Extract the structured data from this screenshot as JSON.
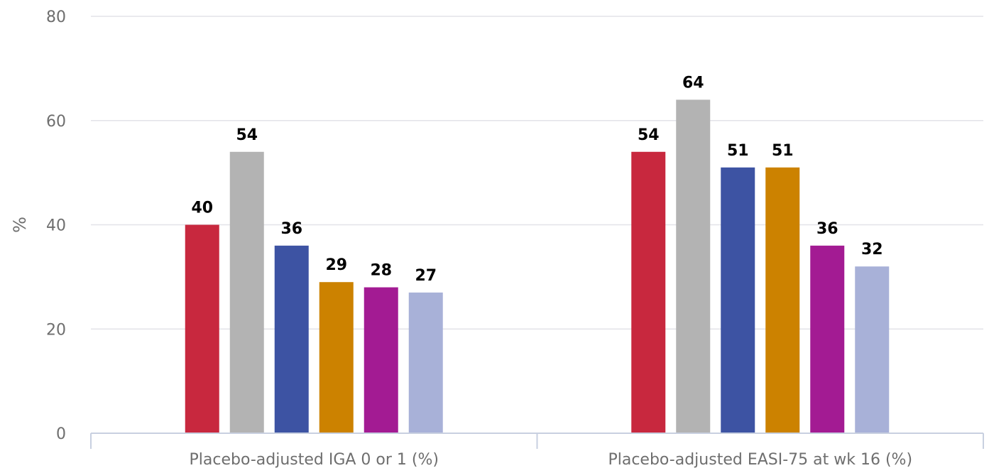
{
  "chart_data": {
    "type": "bar",
    "ylabel": "%",
    "ylim": [
      0,
      80
    ],
    "yticks": [
      0,
      20,
      40,
      60,
      80
    ],
    "grid": true,
    "categories": [
      "Placebo-adjusted IGA 0 or 1 (%)",
      "Placebo-adjusted EASI-75 at wk 16 (%)"
    ],
    "series": [
      {
        "color": "#c8283e",
        "values": [
          40,
          54
        ]
      },
      {
        "color": "#b3b3b3",
        "values": [
          54,
          64
        ]
      },
      {
        "color": "#3d53a3",
        "values": [
          36,
          51
        ]
      },
      {
        "color": "#cc8200",
        "values": [
          29,
          51
        ]
      },
      {
        "color": "#a31b93",
        "values": [
          28,
          36
        ]
      },
      {
        "color": "#a8b1d8",
        "values": [
          27,
          32
        ]
      }
    ]
  }
}
